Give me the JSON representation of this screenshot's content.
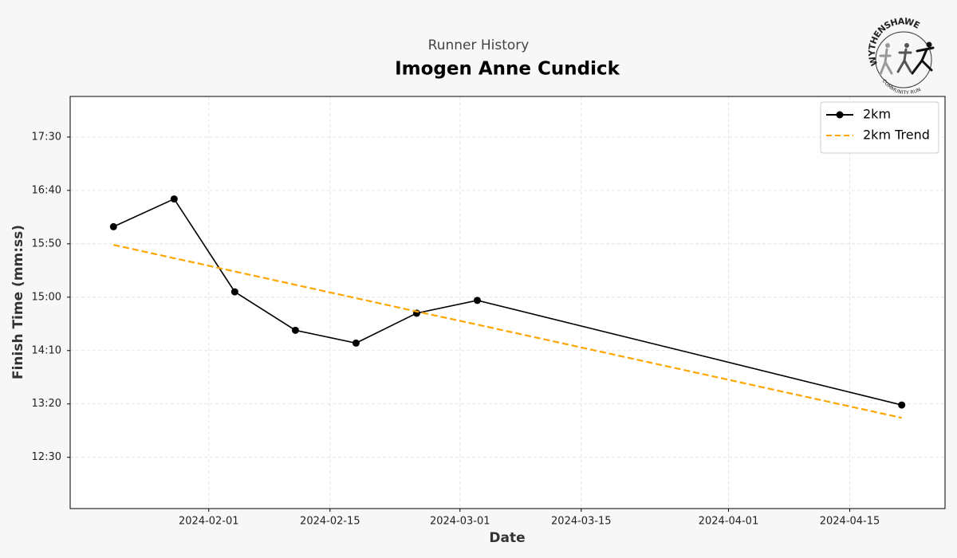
{
  "logo": {
    "top_text": "WYTHENSHAWE",
    "bottom_text": "COMMUNITY RUN"
  },
  "chart_data": {
    "type": "line",
    "subtitle": "Runner History",
    "title": "Imogen Anne Cundick",
    "x_label": "Date",
    "y_label": "Finish Time (mm:ss)",
    "x": [
      "2024-01-21",
      "2024-01-28",
      "2024-02-04",
      "2024-02-11",
      "2024-02-18",
      "2024-02-25",
      "2024-03-03",
      "2024-04-21"
    ],
    "series": [
      {
        "name": "2km",
        "color": "#000000",
        "style": "solid",
        "marker": true,
        "values": [
          966,
          992,
          905,
          869,
          857,
          885,
          897,
          799
        ]
      },
      {
        "name": "2km Trend",
        "color": "#ffa500",
        "style": "dashed",
        "marker": false,
        "values": [
          949,
          936.5,
          924.1,
          911.6,
          899.1,
          886.6,
          874.3,
          787
        ]
      }
    ],
    "xlim": [
      "2024-01-16",
      "2024-04-26"
    ],
    "xticks": [
      "2024-02-01",
      "2024-02-15",
      "2024-03-01",
      "2024-03-15",
      "2024-04-01",
      "2024-04-15"
    ],
    "ylim": [
      702,
      1088
    ],
    "yticks": [
      {
        "value": 750,
        "label": "12:30"
      },
      {
        "value": 800,
        "label": "13:20"
      },
      {
        "value": 850,
        "label": "14:10"
      },
      {
        "value": 900,
        "label": "15:00"
      },
      {
        "value": 950,
        "label": "15:50"
      },
      {
        "value": 1000,
        "label": "16:40"
      },
      {
        "value": 1050,
        "label": "17:30"
      }
    ],
    "grid": true,
    "legend": "upper right"
  }
}
